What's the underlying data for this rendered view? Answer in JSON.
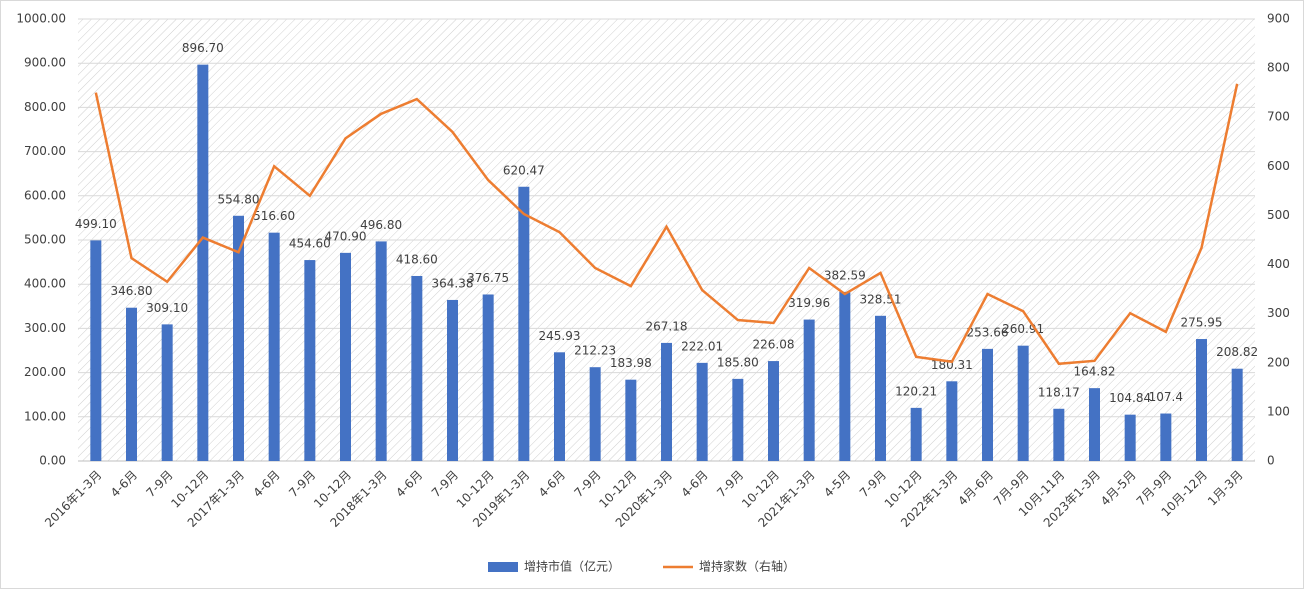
{
  "chart_data": {
    "type": "bar",
    "categories": [
      "2016年1-3月",
      "4-6月",
      "7-9月",
      "10-12月",
      "2017年1-3月",
      "4-6月",
      "7-9月",
      "10-12月",
      "2018年1-3月",
      "4-6月",
      "7-9月",
      "10-12月",
      "2019年1-3月",
      "4-6月",
      "7-9月",
      "10-12月",
      "2020年1-3月",
      "4-6月",
      "7-9月",
      "10-12月",
      "2021年1-3月",
      "4-5月",
      "7-9月",
      "10-12月",
      "2022年1-3月",
      "4月-6月",
      "7月-9月",
      "10月-11月",
      "2023年1-3月",
      "4月-5月",
      "7月-9月",
      "10月-12月",
      "1月-3月"
    ],
    "series": [
      {
        "name": "增持市值（亿元）",
        "type": "bar",
        "color": "#4472c4",
        "values": [
          499.1,
          346.8,
          309.1,
          896.7,
          554.8,
          516.6,
          454.6,
          470.9,
          496.8,
          418.6,
          364.38,
          376.75,
          620.47,
          245.93,
          212.23,
          183.98,
          267.18,
          222.01,
          185.8,
          226.08,
          319.96,
          382.59,
          328.51,
          120.21,
          180.31,
          253.66,
          260.91,
          118.17,
          164.82,
          104.84,
          107.4,
          275.95,
          208.82
        ],
        "value_labels": [
          "499.10",
          "346.80",
          "309.10",
          "896.70",
          "554.80",
          "516.60",
          "454.60",
          "470.90",
          "496.80",
          "418.60",
          "364.38",
          "376.75",
          "620.47",
          "245.93",
          "212.23",
          "183.98",
          "267.18",
          "222.01",
          "185.80",
          "226.08",
          "319.96",
          "382.59",
          "328.51",
          "120.21",
          "180.31",
          "253.66",
          "260.91",
          "118.17",
          "164.82",
          "104.84",
          "107.4",
          "275.95",
          "208.82"
        ]
      },
      {
        "name": "增持家数（右轴）",
        "type": "line",
        "axis": "y2",
        "color": "#ed7d31",
        "values": [
          750,
          413,
          365,
          455,
          425,
          600,
          540,
          657,
          707,
          737,
          670,
          572,
          503,
          466,
          393,
          356,
          477,
          348,
          287,
          281,
          393,
          340,
          383,
          212,
          202,
          340,
          305,
          198,
          204,
          301,
          263,
          434,
          768
        ]
      }
    ],
    "ylim": [
      0,
      1000
    ],
    "yticks": [
      {
        "value": 0,
        "label": "0.00"
      },
      {
        "value": 100,
        "label": "100.00"
      },
      {
        "value": 200,
        "label": "200.00"
      },
      {
        "value": 300,
        "label": "300.00"
      },
      {
        "value": 400,
        "label": "400.00"
      },
      {
        "value": 500,
        "label": "500.00"
      },
      {
        "value": 600,
        "label": "600.00"
      },
      {
        "value": 700,
        "label": "700.00"
      },
      {
        "value": 800,
        "label": "800.00"
      },
      {
        "value": 900,
        "label": "900.00"
      },
      {
        "value": 1000,
        "label": "1000.00"
      }
    ],
    "y2lim": [
      0,
      900
    ],
    "y2ticks": [
      0,
      100,
      200,
      300,
      400,
      500,
      600,
      700,
      800,
      900
    ],
    "grid": true,
    "legend": "bottom"
  }
}
